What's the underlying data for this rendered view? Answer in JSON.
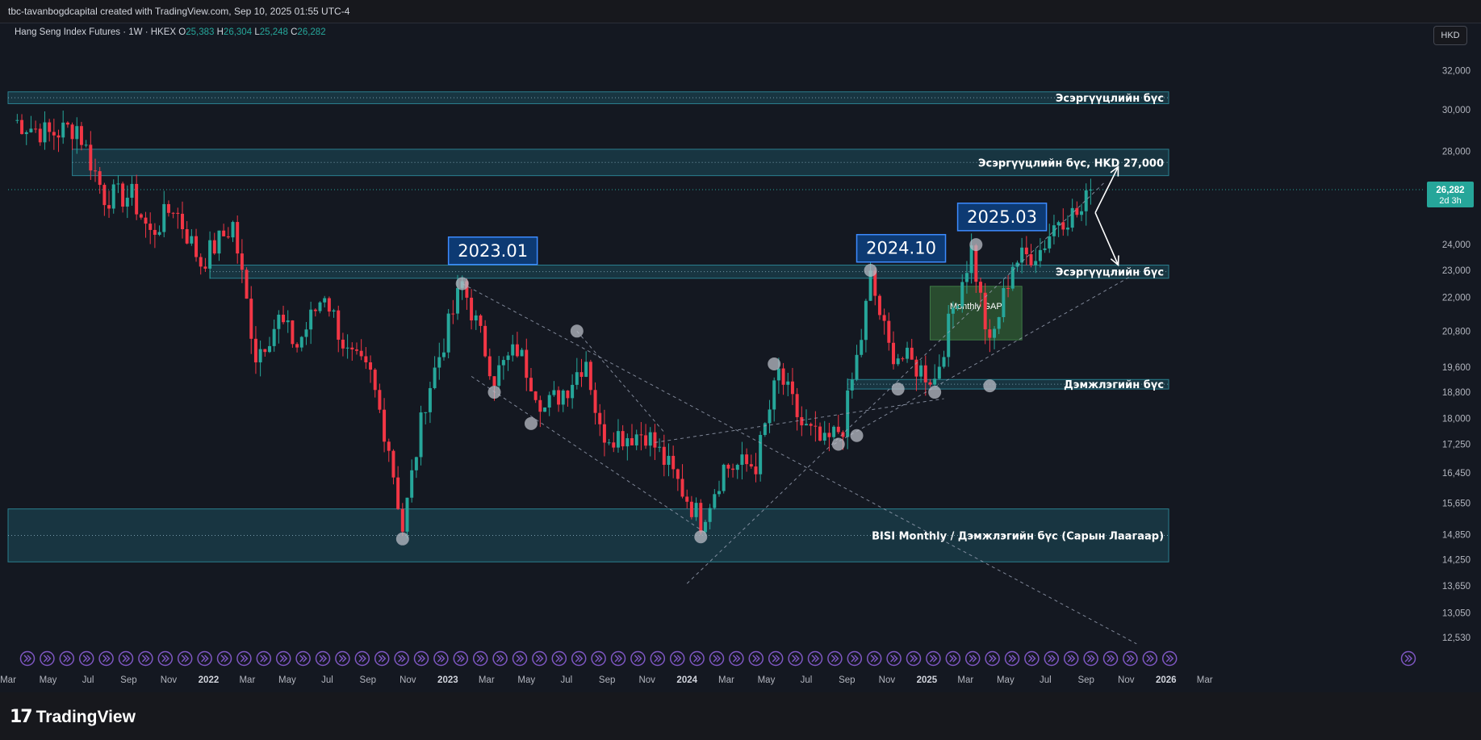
{
  "header": {
    "attribution": "tbc-tavanbogdcapital created with TradingView.com, Sep 10, 2025 01:55 UTC-4"
  },
  "symbol": {
    "name": "Hang Seng Index Futures · 1W · HKEX",
    "open_label": "O",
    "open_value": "25,383",
    "high_label": "H",
    "high_value": "26,304",
    "low_label": "L",
    "low_value": "25,248",
    "close_label": "C",
    "close_value": "26,282"
  },
  "currency_button": "HKD",
  "price_tag": {
    "price": "26,282",
    "countdown": "2d 3h"
  },
  "brand": {
    "name": "TradingView"
  },
  "colors": {
    "background": "#141821",
    "up": "#26a69a",
    "down": "#f23645",
    "zone": "#1c4f5c",
    "gap": "#2e5a33",
    "callout_border": "#2962ff",
    "callout_fill": "#0d3a73",
    "grid_dots": "#5b6b8a"
  },
  "chart_data": {
    "type": "candlestick",
    "interval": "1W",
    "y_scale": "log",
    "ylim": [
      12200,
      33200
    ],
    "xlim": [
      "2021-03-01",
      "2026-03-10"
    ],
    "y_ticks": [
      "32,000",
      "30,000",
      "28,000",
      "24,000",
      "23,000",
      "22,000",
      "20,800",
      "19,600",
      "18,800",
      "18,000",
      "17,250",
      "16,450",
      "15,650",
      "14,850",
      "14,250",
      "13,650",
      "13,050",
      "12,530"
    ],
    "x_ticks": [
      {
        "label": "Mar",
        "date": "2021-03-01"
      },
      {
        "label": "May",
        "date": "2021-05-01"
      },
      {
        "label": "Jul",
        "date": "2021-07-01"
      },
      {
        "label": "Sep",
        "date": "2021-09-01"
      },
      {
        "label": "Nov",
        "date": "2021-11-01"
      },
      {
        "label": "2022",
        "date": "2022-01-01"
      },
      {
        "label": "Mar",
        "date": "2022-03-01"
      },
      {
        "label": "May",
        "date": "2022-05-01"
      },
      {
        "label": "Jul",
        "date": "2022-07-01"
      },
      {
        "label": "Sep",
        "date": "2022-09-01"
      },
      {
        "label": "Nov",
        "date": "2022-11-01"
      },
      {
        "label": "2023",
        "date": "2023-01-01"
      },
      {
        "label": "Mar",
        "date": "2023-03-01"
      },
      {
        "label": "May",
        "date": "2023-05-01"
      },
      {
        "label": "Jul",
        "date": "2023-07-01"
      },
      {
        "label": "Sep",
        "date": "2023-09-01"
      },
      {
        "label": "Nov",
        "date": "2023-11-01"
      },
      {
        "label": "2024",
        "date": "2024-01-01"
      },
      {
        "label": "Mar",
        "date": "2024-03-01"
      },
      {
        "label": "May",
        "date": "2024-05-01"
      },
      {
        "label": "Jul",
        "date": "2024-07-01"
      },
      {
        "label": "Sep",
        "date": "2024-09-01"
      },
      {
        "label": "Nov",
        "date": "2024-11-01"
      },
      {
        "label": "2025",
        "date": "2025-01-01"
      },
      {
        "label": "Mar",
        "date": "2025-03-01"
      },
      {
        "label": "May",
        "date": "2025-05-01"
      },
      {
        "label": "Jul",
        "date": "2025-07-01"
      },
      {
        "label": "Sep",
        "date": "2025-09-01"
      },
      {
        "label": "Nov",
        "date": "2025-11-01"
      },
      {
        "label": "2026",
        "date": "2026-01-01"
      },
      {
        "label": "Mar",
        "date": "2026-03-01"
      }
    ],
    "anchors": [
      {
        "date": "2021-03-08",
        "close": 29500
      },
      {
        "date": "2021-05-03",
        "close": 28800
      },
      {
        "date": "2021-06-14",
        "close": 29200
      },
      {
        "date": "2021-07-26",
        "close": 26000
      },
      {
        "date": "2021-09-06",
        "close": 26000
      },
      {
        "date": "2021-10-04",
        "close": 24400
      },
      {
        "date": "2021-11-08",
        "close": 25600
      },
      {
        "date": "2021-12-20",
        "close": 23300
      },
      {
        "date": "2022-02-07",
        "close": 24800
      },
      {
        "date": "2022-03-14",
        "close": 20000
      },
      {
        "date": "2022-04-18",
        "close": 21200
      },
      {
        "date": "2022-05-16",
        "close": 20300
      },
      {
        "date": "2022-06-27",
        "close": 22200
      },
      {
        "date": "2022-08-01",
        "close": 20000
      },
      {
        "date": "2022-09-05",
        "close": 19300
      },
      {
        "date": "2022-10-03",
        "close": 17200
      },
      {
        "date": "2022-10-24",
        "close": 15000
      },
      {
        "date": "2022-11-28",
        "close": 18600
      },
      {
        "date": "2023-01-23",
        "close": 22500
      },
      {
        "date": "2023-03-13",
        "close": 19300
      },
      {
        "date": "2023-04-17",
        "close": 20200
      },
      {
        "date": "2023-05-29",
        "close": 18300
      },
      {
        "date": "2023-07-03",
        "close": 19000
      },
      {
        "date": "2023-07-31",
        "close": 19900
      },
      {
        "date": "2023-08-21",
        "close": 17600
      },
      {
        "date": "2023-10-02",
        "close": 17500
      },
      {
        "date": "2023-10-30",
        "close": 17600
      },
      {
        "date": "2023-12-04",
        "close": 16600
      },
      {
        "date": "2024-01-22",
        "close": 15200
      },
      {
        "date": "2024-02-26",
        "close": 16600
      },
      {
        "date": "2024-04-15",
        "close": 16700
      },
      {
        "date": "2024-05-20",
        "close": 19400
      },
      {
        "date": "2024-06-24",
        "close": 17800
      },
      {
        "date": "2024-07-29",
        "close": 17200
      },
      {
        "date": "2024-08-26",
        "close": 17800
      },
      {
        "date": "2024-09-23",
        "close": 20600
      },
      {
        "date": "2024-10-07",
        "close": 22700
      },
      {
        "date": "2024-11-04",
        "close": 20200
      },
      {
        "date": "2024-12-09",
        "close": 19700
      },
      {
        "date": "2025-01-13",
        "close": 19200
      },
      {
        "date": "2025-02-10",
        "close": 21600
      },
      {
        "date": "2025-03-10",
        "close": 23800
      },
      {
        "date": "2025-04-07",
        "close": 20200
      },
      {
        "date": "2025-05-12",
        "close": 23300
      },
      {
        "date": "2025-06-23",
        "close": 23800
      },
      {
        "date": "2025-07-21",
        "close": 25100
      },
      {
        "date": "2025-08-25",
        "close": 25300
      },
      {
        "date": "2025-09-08",
        "close": 26282
      }
    ],
    "zones": [
      {
        "label": "Эсэргүүцлийн бүс",
        "from_date": "2021-03-01",
        "to_date": "2026-01-05",
        "low": 30300,
        "high": 30900
      },
      {
        "label": "Эсэргүүцлийн бүс, HKD 27,000",
        "from_date": "2021-06-07",
        "to_date": "2026-01-05",
        "low": 26900,
        "high": 28100
      },
      {
        "label": "Эсэргүүцлийн бүс",
        "from_date": "2022-01-03",
        "to_date": "2026-01-05",
        "low": 22700,
        "high": 23200
      },
      {
        "label": "Дэмжлэгийн бүс",
        "from_date": "2024-09-02",
        "to_date": "2026-01-05",
        "low": 18900,
        "high": 19200
      },
      {
        "label": "BISI Monthly / Дэмжлэгийн бүс (Сарын Лаагаар)",
        "from_date": "2021-03-01",
        "to_date": "2026-01-05",
        "low": 14200,
        "high": 15500
      }
    ],
    "gap": {
      "label": "Monthly GAP",
      "from_date": "2025-01-06",
      "to_date": "2025-05-26",
      "low": 20500,
      "high": 22400
    },
    "callouts": [
      {
        "label": "2023.01",
        "date": "2023-01-02",
        "price": 24300
      },
      {
        "label": "2024.10",
        "date": "2024-09-16",
        "price": 24400
      },
      {
        "label": "2025.03",
        "date": "2025-02-17",
        "price": 25700
      }
    ],
    "marked_points": [
      {
        "date": "2022-10-24",
        "price": 14750
      },
      {
        "date": "2023-01-23",
        "price": 22500
      },
      {
        "date": "2023-03-13",
        "price": 18800
      },
      {
        "date": "2023-05-08",
        "price": 17850
      },
      {
        "date": "2023-07-17",
        "price": 20800
      },
      {
        "date": "2024-01-22",
        "price": 14800
      },
      {
        "date": "2024-05-13",
        "price": 19700
      },
      {
        "date": "2024-08-19",
        "price": 17250
      },
      {
        "date": "2024-09-16",
        "price": 17500
      },
      {
        "date": "2024-10-07",
        "price": 23000
      },
      {
        "date": "2024-11-18",
        "price": 18900
      },
      {
        "date": "2025-01-13",
        "price": 18800
      },
      {
        "date": "2025-03-17",
        "price": 24000
      },
      {
        "date": "2025-04-07",
        "price": 19000
      }
    ],
    "trendlines": [
      {
        "from": {
          "date": "2023-01-23",
          "price": 22500
        },
        "to": {
          "date": "2025-11-17",
          "price": 12400
        }
      },
      {
        "from": {
          "date": "2023-02-06",
          "price": 19300
        },
        "to": {
          "date": "2024-01-29",
          "price": 14900
        }
      },
      {
        "from": {
          "date": "2023-07-17",
          "price": 20800
        },
        "to": {
          "date": "2023-11-27",
          "price": 17600
        }
      },
      {
        "from": {
          "date": "2024-01-01",
          "price": 13700
        },
        "to": {
          "date": "2025-09-29",
          "price": 26600
        }
      },
      {
        "from": {
          "date": "2023-11-13",
          "price": 17300
        },
        "to": {
          "date": "2025-01-27",
          "price": 18600
        }
      },
      {
        "from": {
          "date": "2024-08-12",
          "price": 17250
        },
        "to": {
          "date": "2025-11-10",
          "price": 22800
        }
      }
    ],
    "projection_arrows": [
      {
        "from": {
          "date": "2025-09-15",
          "price": 25300
        },
        "to": {
          "date": "2025-10-20",
          "price": 27300
        }
      },
      {
        "from": {
          "date": "2025-09-15",
          "price": 25300
        },
        "to": {
          "date": "2025-10-20",
          "price": 23200
        }
      }
    ]
  }
}
